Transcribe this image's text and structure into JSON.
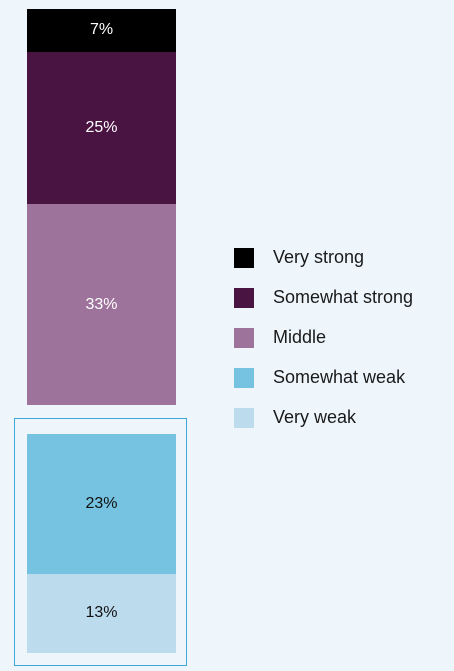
{
  "chart_data": {
    "type": "bar",
    "stacked": true,
    "categories": [
      ""
    ],
    "series": [
      {
        "name": "Very strong",
        "values": [
          7
        ],
        "label": "7%",
        "color": "#000000",
        "text_color": "#ffffff"
      },
      {
        "name": "Somewhat strong",
        "values": [
          25
        ],
        "label": "25%",
        "color": "#4a1442",
        "text_color": "#ffffff"
      },
      {
        "name": "Middle",
        "values": [
          33
        ],
        "label": "33%",
        "color": "#9d739c",
        "text_color": "#ffffff"
      },
      {
        "name": "Somewhat weak",
        "values": [
          23
        ],
        "label": "23%",
        "color": "#76c3e1",
        "text_color": "#111111"
      },
      {
        "name": "Very weak",
        "values": [
          13
        ],
        "label": "13%",
        "color": "#bcdcee",
        "text_color": "#111111"
      }
    ],
    "groups": [
      {
        "members": [
          "Very strong",
          "Somewhat strong",
          "Middle"
        ],
        "highlighted": false
      },
      {
        "members": [
          "Somewhat weak",
          "Very weak"
        ],
        "highlighted": true
      }
    ],
    "legend": "right",
    "grid": false,
    "xlabel": "",
    "ylabel": ""
  },
  "colors": {
    "background": "#eef5fb",
    "highlight_border": "#3ea6d8"
  }
}
